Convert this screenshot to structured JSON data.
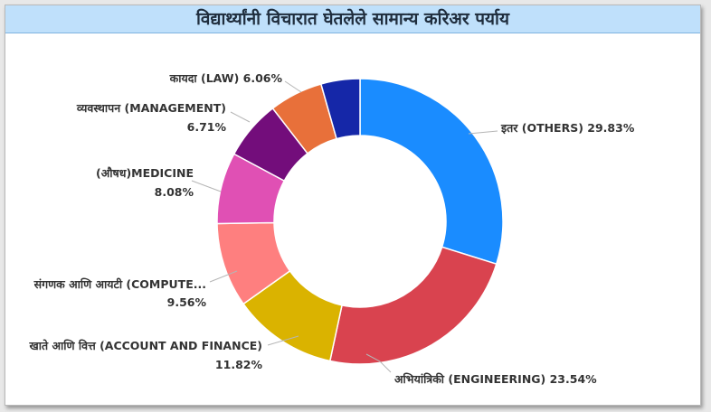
{
  "chart_data": {
    "type": "pie",
    "title": "विद्यार्थ्यांनी विचारात घेतलेले सामान्य करिअर पर्याय",
    "slices": [
      {
        "label": "इतर (OTHERS)",
        "percent_label": "29.83%",
        "value": 29.83,
        "color": "#1a8cff"
      },
      {
        "label": "अभियांत्रिकी (ENGINEERING)",
        "percent_label": "23.54%",
        "value": 23.54,
        "color": "#d9434f"
      },
      {
        "label": "खाते आणि वित्त (ACCOUNT AND FINANCE)",
        "percent_label": "11.82%",
        "value": 11.82,
        "color": "#dab300"
      },
      {
        "label": "संगणक आणि आयटी (COMPUTE...",
        "percent_label": "9.56%",
        "value": 9.56,
        "color": "#fe7f7f"
      },
      {
        "label": "(औषध)MEDICINE",
        "percent_label": "8.08%",
        "value": 8.08,
        "color": "#e050b4"
      },
      {
        "label": "व्यवस्थापन (MANAGEMENT)",
        "percent_label": "6.71%",
        "value": 6.71,
        "color": "#730d7b"
      },
      {
        "label": "कायदा (LAW)",
        "percent_label": "6.06%",
        "value": 6.06,
        "color": "#e8703a"
      },
      {
        "label": "",
        "percent_label": "",
        "value": 4.4,
        "color": "#1527a8"
      }
    ]
  }
}
